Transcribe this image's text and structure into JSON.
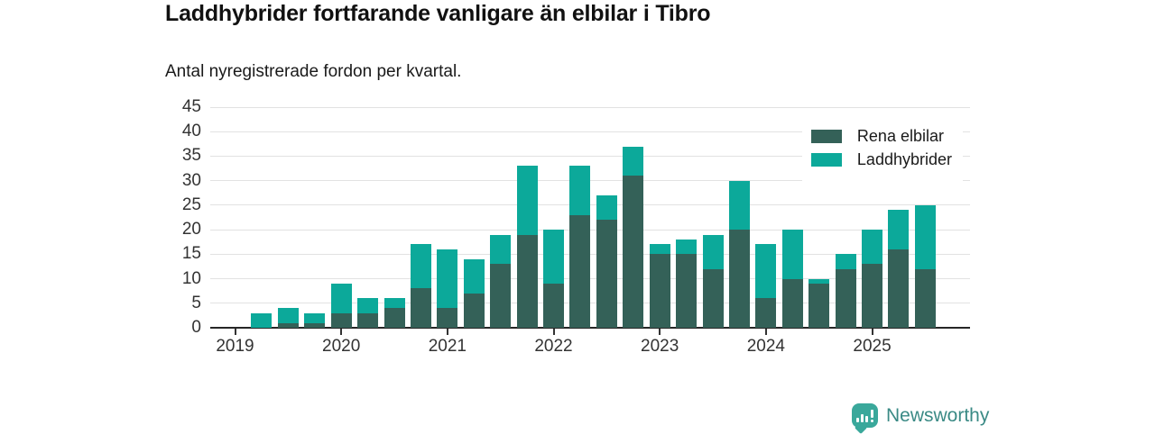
{
  "header": {
    "title": "Laddhybrider fortfarande vanligare än elbilar i Tibro",
    "subtitle": "Antal nyregistrerade fordon per kvartal."
  },
  "chart_data": {
    "type": "bar",
    "stacked": true,
    "title": "Laddhybrider fortfarande vanligare än elbilar i Tibro",
    "subtitle": "Antal nyregistrerade fordon per kvartal.",
    "categories": [
      "2019 Q1",
      "2019 Q2",
      "2019 Q3",
      "2019 Q4",
      "2020 Q1",
      "2020 Q2",
      "2020 Q3",
      "2020 Q4",
      "2021 Q1",
      "2021 Q2",
      "2021 Q3",
      "2021 Q4",
      "2022 Q1",
      "2022 Q2",
      "2022 Q3",
      "2022 Q4",
      "2023 Q1",
      "2023 Q2",
      "2023 Q3",
      "2023 Q4",
      "2024 Q1",
      "2024 Q2",
      "2024 Q3",
      "2024 Q4",
      "2025 Q1",
      "2025 Q2",
      "2025 Q3"
    ],
    "x_tick_labels": [
      "2019",
      "2020",
      "2021",
      "2022",
      "2023",
      "2024",
      "2025"
    ],
    "series": [
      {
        "name": "Rena elbilar",
        "color": "#346158",
        "values": [
          0,
          0,
          1,
          1,
          3,
          3,
          4,
          8,
          4,
          7,
          13,
          19,
          9,
          23,
          22,
          31,
          15,
          15,
          12,
          20,
          6,
          10,
          9,
          12,
          13,
          16,
          12
        ]
      },
      {
        "name": "Laddhybrider",
        "color": "#0ca99a",
        "values": [
          0,
          3,
          3,
          2,
          6,
          3,
          2,
          9,
          12,
          7,
          6,
          14,
          11,
          10,
          5,
          6,
          2,
          3,
          7,
          10,
          11,
          10,
          1,
          3,
          7,
          8,
          13
        ]
      }
    ],
    "ylim": [
      0,
      45
    ],
    "y_ticks": [
      0,
      5,
      10,
      15,
      20,
      25,
      30,
      35,
      40,
      45
    ],
    "grid": true,
    "legend_position": "top-right"
  },
  "footer": {
    "brand": "Newsworthy"
  },
  "colors": {
    "rena_elbilar": "#346158",
    "laddhybrider": "#0ca99a",
    "gridline": "#e2e2e2",
    "axis": "#262626",
    "tick_text": "#333333",
    "logo_icon": "#3aa89b",
    "logo_text": "#3a8a85"
  }
}
